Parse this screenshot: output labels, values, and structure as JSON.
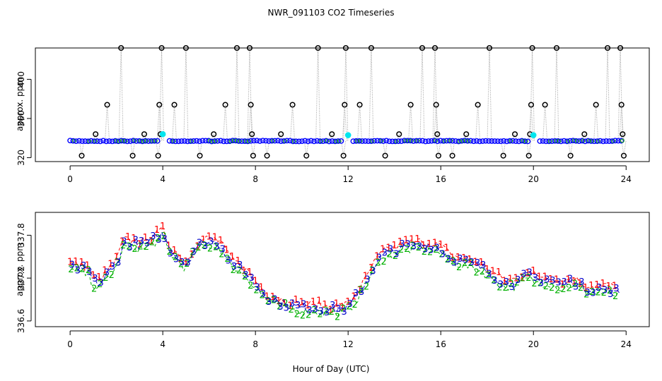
{
  "chart_data": [
    {
      "panel": "top",
      "type": "scatter",
      "title": "NWR_091103  CO2 Timeseries",
      "xlabel": "",
      "ylabel": "approx. ppm",
      "xlim": [
        -1.5,
        25
      ],
      "ylim": [
        316,
        432
      ],
      "xticks": [
        "0",
        "4",
        "8",
        "12",
        "16",
        "20",
        "24"
      ],
      "yticks": [
        "320",
        "360",
        "400"
      ],
      "baseline_level": 337,
      "colors": {
        "main": "#0000ff",
        "secondary": "#00a000",
        "flagged": "#000000",
        "highlight": "#00e5ee",
        "connector": "#a0a0a0"
      },
      "flagged_points": [
        {
          "x": 0.5,
          "y": 322
        },
        {
          "x": 1.1,
          "y": 344
        },
        {
          "x": 1.6,
          "y": 374
        },
        {
          "x": 2.2,
          "y": 434
        },
        {
          "x": 2.7,
          "y": 322
        },
        {
          "x": 3.2,
          "y": 344
        },
        {
          "x": 3.8,
          "y": 322
        },
        {
          "x": 3.85,
          "y": 374
        },
        {
          "x": 3.9,
          "y": 344
        },
        {
          "x": 3.95,
          "y": 434
        },
        {
          "x": 4.5,
          "y": 374
        },
        {
          "x": 5.0,
          "y": 434
        },
        {
          "x": 5.6,
          "y": 322
        },
        {
          "x": 6.2,
          "y": 344
        },
        {
          "x": 6.7,
          "y": 374
        },
        {
          "x": 7.2,
          "y": 434
        },
        {
          "x": 7.75,
          "y": 434
        },
        {
          "x": 7.8,
          "y": 374
        },
        {
          "x": 7.85,
          "y": 344
        },
        {
          "x": 7.9,
          "y": 322
        },
        {
          "x": 8.5,
          "y": 322
        },
        {
          "x": 9.1,
          "y": 344
        },
        {
          "x": 9.6,
          "y": 374
        },
        {
          "x": 10.2,
          "y": 322
        },
        {
          "x": 10.7,
          "y": 434
        },
        {
          "x": 11.3,
          "y": 344
        },
        {
          "x": 11.8,
          "y": 322
        },
        {
          "x": 11.85,
          "y": 374
        },
        {
          "x": 11.9,
          "y": 434
        },
        {
          "x": 12.5,
          "y": 374
        },
        {
          "x": 13.0,
          "y": 434
        },
        {
          "x": 13.6,
          "y": 322
        },
        {
          "x": 14.2,
          "y": 344
        },
        {
          "x": 14.7,
          "y": 374
        },
        {
          "x": 15.2,
          "y": 434
        },
        {
          "x": 15.75,
          "y": 434
        },
        {
          "x": 15.8,
          "y": 374
        },
        {
          "x": 15.85,
          "y": 344
        },
        {
          "x": 15.9,
          "y": 322
        },
        {
          "x": 16.5,
          "y": 322
        },
        {
          "x": 17.1,
          "y": 344
        },
        {
          "x": 17.6,
          "y": 374
        },
        {
          "x": 18.1,
          "y": 434
        },
        {
          "x": 18.7,
          "y": 322
        },
        {
          "x": 19.2,
          "y": 344
        },
        {
          "x": 19.8,
          "y": 322
        },
        {
          "x": 19.85,
          "y": 344
        },
        {
          "x": 19.9,
          "y": 374
        },
        {
          "x": 19.95,
          "y": 434
        },
        {
          "x": 20.5,
          "y": 374
        },
        {
          "x": 21.0,
          "y": 434
        },
        {
          "x": 21.6,
          "y": 322
        },
        {
          "x": 22.2,
          "y": 344
        },
        {
          "x": 22.7,
          "y": 374
        },
        {
          "x": 23.2,
          "y": 434
        },
        {
          "x": 23.75,
          "y": 434
        },
        {
          "x": 23.8,
          "y": 374
        },
        {
          "x": 23.85,
          "y": 344
        },
        {
          "x": 23.9,
          "y": 322
        }
      ],
      "highlight_points": [
        {
          "x": 4.0,
          "y": 344
        },
        {
          "x": 12.0,
          "y": 343
        },
        {
          "x": 20.0,
          "y": 343
        }
      ]
    },
    {
      "panel": "bottom",
      "type": "line",
      "title": "",
      "xlabel": "Hour of Day (UTC)",
      "ylabel": "approx. ppm",
      "xlim": [
        -1.5,
        25
      ],
      "ylim": [
        336.52,
        338.12
      ],
      "xticks": [
        "0",
        "4",
        "8",
        "12",
        "16",
        "20",
        "24"
      ],
      "yticks": [
        "336.6",
        "337.2",
        "337.8"
      ],
      "colors": {
        "1": "#ff0000",
        "2": "#00b000",
        "3": "#0000cc"
      },
      "series": [
        {
          "name": "1",
          "label": "1"
        },
        {
          "name": "2",
          "label": "2"
        },
        {
          "name": "3",
          "label": "3"
        }
      ],
      "base_curve": [
        [
          0.0,
          337.36
        ],
        [
          0.4,
          337.33
        ],
        [
          0.8,
          337.3
        ],
        [
          1.0,
          337.15
        ],
        [
          1.3,
          337.12
        ],
        [
          1.6,
          337.25
        ],
        [
          2.0,
          337.4
        ],
        [
          2.3,
          337.68
        ],
        [
          2.8,
          337.68
        ],
        [
          3.2,
          337.65
        ],
        [
          3.6,
          337.74
        ],
        [
          4.0,
          337.82
        ],
        [
          4.3,
          337.6
        ],
        [
          4.7,
          337.48
        ],
        [
          5.0,
          337.38
        ],
        [
          5.4,
          337.62
        ],
        [
          5.8,
          337.7
        ],
        [
          6.2,
          337.7
        ],
        [
          6.5,
          337.66
        ],
        [
          6.8,
          337.48
        ],
        [
          7.2,
          337.36
        ],
        [
          7.6,
          337.28
        ],
        [
          8.0,
          337.1
        ],
        [
          8.5,
          336.94
        ],
        [
          9.0,
          336.86
        ],
        [
          9.5,
          336.82
        ],
        [
          10.0,
          336.78
        ],
        [
          10.5,
          336.78
        ],
        [
          11.0,
          336.76
        ],
        [
          11.5,
          336.76
        ],
        [
          12.0,
          336.78
        ],
        [
          12.3,
          336.92
        ],
        [
          12.7,
          337.1
        ],
        [
          13.1,
          337.35
        ],
        [
          13.5,
          337.52
        ],
        [
          14.0,
          337.58
        ],
        [
          14.5,
          337.64
        ],
        [
          15.0,
          337.66
        ],
        [
          15.5,
          337.66
        ],
        [
          16.0,
          337.6
        ],
        [
          16.4,
          337.48
        ],
        [
          16.8,
          337.44
        ],
        [
          17.3,
          337.4
        ],
        [
          17.8,
          337.34
        ],
        [
          18.3,
          337.22
        ],
        [
          18.8,
          337.12
        ],
        [
          19.3,
          337.14
        ],
        [
          19.7,
          337.24
        ],
        [
          20.2,
          337.18
        ],
        [
          20.7,
          337.18
        ],
        [
          21.2,
          337.1
        ],
        [
          21.7,
          337.16
        ],
        [
          22.2,
          337.06
        ],
        [
          22.7,
          337.04
        ],
        [
          23.2,
          337.04
        ],
        [
          23.7,
          337.0
        ]
      ]
    }
  ]
}
